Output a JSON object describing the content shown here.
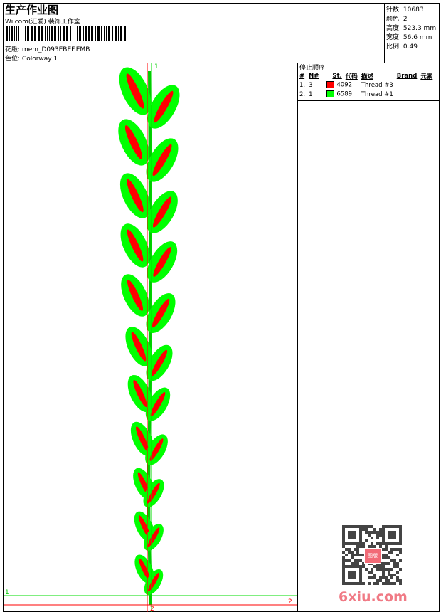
{
  "header": {
    "title": "生产作业图",
    "company": "Wilcom(汇爱) 装饰工作室",
    "design_label": "花版:",
    "design_value": "mem_D093EBEF.EMB",
    "colorway_label": "色位:",
    "colorway_value": "Colorway 1"
  },
  "info": [
    {
      "label": "针数:",
      "value": "10683"
    },
    {
      "label": "颜色:",
      "value": "2"
    },
    {
      "label": "高度:",
      "value": "523.3 mm"
    },
    {
      "label": "宽度:",
      "value": "56.6 mm"
    },
    {
      "label": "比例:",
      "value": "0.49"
    }
  ],
  "stop_sequence": {
    "title": "停止顺序:",
    "headers": [
      "#",
      "N#",
      "St.",
      "代码",
      "描述",
      "Brand",
      "元素"
    ],
    "rows": [
      {
        "index": "1.",
        "n": "3",
        "color": "#ff0000",
        "code": "4092",
        "desc": "Thread #3"
      },
      {
        "index": "2.",
        "n": "1",
        "color": "#00ff00",
        "code": "6589",
        "desc": "Thread #1"
      }
    ]
  },
  "markers": {
    "green_top": "1",
    "green_left": "1",
    "red_right": "2",
    "red_bottom": "2"
  },
  "colors": {
    "leaf_outer": "#00ff00",
    "leaf_inner": "#ff0000",
    "stem": "#00cc00"
  },
  "watermark": "6xiu.com",
  "qr_badge": "图版"
}
